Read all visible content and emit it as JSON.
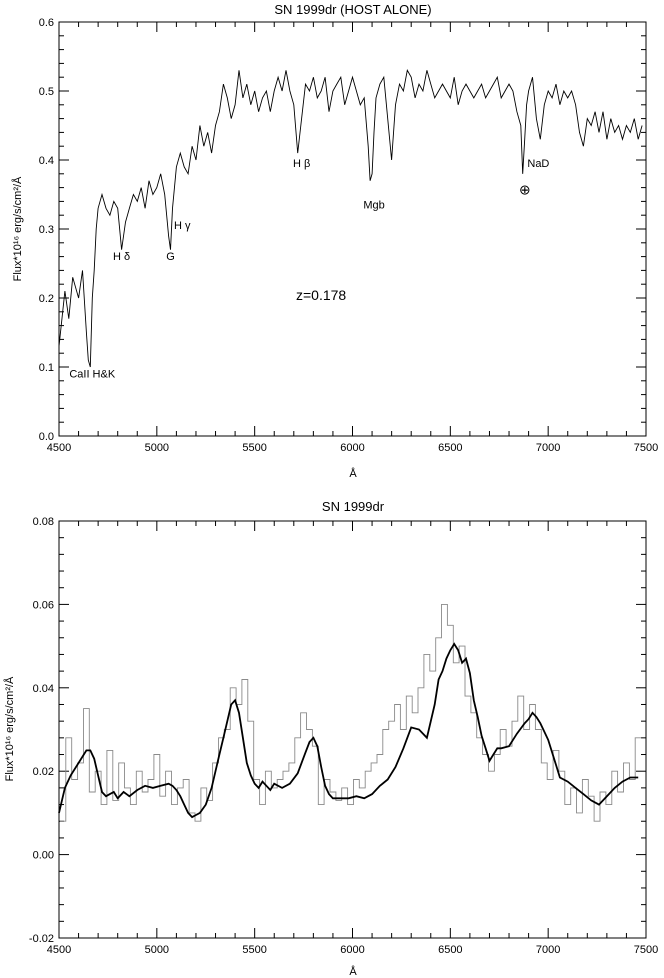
{
  "chart_data": [
    {
      "type": "line",
      "title": "SN 1999dr (HOST ALONE)",
      "xlabel": "Å",
      "ylabel": "Flux*10¹⁶ erg/s/cm²/Å",
      "xlim": [
        4500,
        7500
      ],
      "ylim": [
        0.0,
        0.6
      ],
      "x_ticks": [
        "4500",
        "5000",
        "5500",
        "6000",
        "6500",
        "7000",
        "7500"
      ],
      "y_ticks": [
        "0.0",
        "0.1",
        "0.2",
        "0.3",
        "0.4",
        "0.5",
        "0.6"
      ],
      "grid": false,
      "annotation_text": "z=0.178",
      "annotations": [
        {
          "text": "CaII H&K",
          "x": 4670,
          "y": 0.085
        },
        {
          "text": "H δ",
          "x": 4820,
          "y": 0.255
        },
        {
          "text": "G",
          "x": 5070,
          "y": 0.255
        },
        {
          "text": "H γ",
          "x": 5130,
          "y": 0.3
        },
        {
          "text": "H β",
          "x": 5740,
          "y": 0.39
        },
        {
          "text": "Mgb",
          "x": 6110,
          "y": 0.33
        },
        {
          "text": "⊕",
          "x": 6880,
          "y": 0.35
        },
        {
          "text": "NaD",
          "x": 6950,
          "y": 0.39
        }
      ],
      "series": [
        {
          "x": [
            4500,
            4530,
            4550,
            4570,
            4600,
            4620,
            4640,
            4650,
            4660,
            4670,
            4680,
            4690,
            4700,
            4720,
            4740,
            4760,
            4780,
            4800,
            4820,
            4840,
            4860,
            4880,
            4900,
            4920,
            4940,
            4960,
            4980,
            5000,
            5020,
            5040,
            5060,
            5070,
            5080,
            5100,
            5120,
            5140,
            5160,
            5180,
            5200,
            5220,
            5240,
            5260,
            5280,
            5300,
            5320,
            5340,
            5360,
            5380,
            5400,
            5420,
            5440,
            5460,
            5480,
            5500,
            5520,
            5540,
            5560,
            5580,
            5600,
            5620,
            5640,
            5660,
            5680,
            5700,
            5720,
            5740,
            5760,
            5780,
            5800,
            5820,
            5840,
            5860,
            5880,
            5900,
            5920,
            5940,
            5960,
            5980,
            6000,
            6020,
            6040,
            6060,
            6080,
            6090,
            6100,
            6110,
            6120,
            6140,
            6160,
            6180,
            6200,
            6220,
            6240,
            6260,
            6280,
            6300,
            6320,
            6340,
            6360,
            6380,
            6400,
            6420,
            6440,
            6460,
            6480,
            6500,
            6520,
            6540,
            6560,
            6580,
            6600,
            6620,
            6640,
            6660,
            6680,
            6700,
            6720,
            6740,
            6760,
            6780,
            6800,
            6820,
            6840,
            6860,
            6870,
            6880,
            6890,
            6900,
            6920,
            6940,
            6960,
            6980,
            7000,
            7020,
            7040,
            7060,
            7080,
            7100,
            7120,
            7140,
            7160,
            7180,
            7200,
            7220,
            7240,
            7260,
            7280,
            7300,
            7320,
            7340,
            7360,
            7380,
            7400,
            7420,
            7440,
            7460,
            7480
          ],
          "values": [
            0.13,
            0.21,
            0.17,
            0.23,
            0.2,
            0.24,
            0.15,
            0.11,
            0.1,
            0.2,
            0.24,
            0.3,
            0.33,
            0.35,
            0.33,
            0.32,
            0.34,
            0.33,
            0.27,
            0.31,
            0.33,
            0.35,
            0.34,
            0.36,
            0.33,
            0.37,
            0.35,
            0.36,
            0.38,
            0.35,
            0.29,
            0.27,
            0.33,
            0.39,
            0.41,
            0.39,
            0.38,
            0.42,
            0.4,
            0.45,
            0.42,
            0.44,
            0.41,
            0.45,
            0.47,
            0.51,
            0.49,
            0.46,
            0.48,
            0.53,
            0.49,
            0.51,
            0.48,
            0.5,
            0.47,
            0.49,
            0.5,
            0.47,
            0.5,
            0.52,
            0.5,
            0.53,
            0.5,
            0.48,
            0.41,
            0.46,
            0.51,
            0.5,
            0.52,
            0.49,
            0.5,
            0.52,
            0.47,
            0.5,
            0.51,
            0.52,
            0.48,
            0.5,
            0.52,
            0.5,
            0.48,
            0.49,
            0.42,
            0.37,
            0.38,
            0.44,
            0.49,
            0.51,
            0.52,
            0.46,
            0.4,
            0.48,
            0.51,
            0.5,
            0.53,
            0.52,
            0.49,
            0.51,
            0.5,
            0.53,
            0.51,
            0.49,
            0.5,
            0.51,
            0.5,
            0.49,
            0.52,
            0.48,
            0.5,
            0.51,
            0.5,
            0.49,
            0.5,
            0.51,
            0.49,
            0.5,
            0.51,
            0.52,
            0.49,
            0.5,
            0.51,
            0.5,
            0.47,
            0.45,
            0.38,
            0.43,
            0.48,
            0.5,
            0.52,
            0.46,
            0.43,
            0.48,
            0.5,
            0.49,
            0.51,
            0.48,
            0.5,
            0.49,
            0.5,
            0.48,
            0.44,
            0.42,
            0.46,
            0.45,
            0.47,
            0.44,
            0.47,
            0.43,
            0.46,
            0.44,
            0.45,
            0.43,
            0.45,
            0.44,
            0.46,
            0.43,
            0.45
          ]
        }
      ]
    },
    {
      "type": "line",
      "title": "SN 1999dr",
      "xlabel": "Å",
      "ylabel": "Flux*10¹⁶ erg/s/cm²/Å",
      "xlim": [
        4500,
        7500
      ],
      "ylim": [
        -0.02,
        0.08
      ],
      "x_ticks": [
        "4500",
        "5000",
        "5500",
        "6000",
        "6500",
        "7000",
        "7500"
      ],
      "y_ticks": [
        "-0.02",
        "0.00",
        "0.02",
        "0.04",
        "0.06",
        "0.08"
      ],
      "grid": false,
      "series": [
        {
          "x": [
            4520,
            4550,
            4580,
            4610,
            4640,
            4670,
            4700,
            4730,
            4760,
            4790,
            4820,
            4850,
            4880,
            4910,
            4940,
            4970,
            5000,
            5030,
            5060,
            5090,
            5120,
            5150,
            5180,
            5210,
            5240,
            5270,
            5300,
            5330,
            5360,
            5390,
            5420,
            5450,
            5480,
            5510,
            5540,
            5570,
            5600,
            5630,
            5660,
            5690,
            5720,
            5750,
            5780,
            5810,
            5840,
            5870,
            5900,
            5930,
            5960,
            5990,
            6020,
            6050,
            6080,
            6110,
            6140,
            6170,
            6200,
            6230,
            6260,
            6290,
            6320,
            6350,
            6380,
            6410,
            6440,
            6470,
            6500,
            6530,
            6560,
            6590,
            6620,
            6650,
            6680,
            6710,
            6740,
            6770,
            6800,
            6830,
            6860,
            6890,
            6920,
            6950,
            6980,
            7010,
            7040,
            7070,
            7100,
            7130,
            7160,
            7190,
            7220,
            7250,
            7280,
            7310,
            7340,
            7370,
            7400,
            7430,
            7460
          ],
          "values": [
            0.008,
            0.028,
            0.018,
            0.022,
            0.035,
            0.015,
            0.02,
            0.012,
            0.025,
            0.013,
            0.022,
            0.016,
            0.012,
            0.02,
            0.015,
            0.018,
            0.024,
            0.014,
            0.02,
            0.012,
            0.016,
            0.018,
            0.01,
            0.008,
            0.016,
            0.013,
            0.022,
            0.028,
            0.03,
            0.04,
            0.036,
            0.042,
            0.032,
            0.018,
            0.012,
            0.02,
            0.016,
            0.018,
            0.02,
            0.022,
            0.028,
            0.034,
            0.03,
            0.026,
            0.012,
            0.018,
            0.015,
            0.013,
            0.016,
            0.012,
            0.018,
            0.016,
            0.02,
            0.022,
            0.024,
            0.03,
            0.032,
            0.036,
            0.03,
            0.038,
            0.034,
            0.04,
            0.048,
            0.044,
            0.052,
            0.06,
            0.055,
            0.046,
            0.05,
            0.038,
            0.034,
            0.028,
            0.024,
            0.02,
            0.024,
            0.03,
            0.026,
            0.032,
            0.038,
            0.03,
            0.036,
            0.03,
            0.022,
            0.018,
            0.025,
            0.02,
            0.012,
            0.016,
            0.01,
            0.018,
            0.014,
            0.008,
            0.015,
            0.012,
            0.02,
            0.015,
            0.022,
            0.018,
            0.028
          ]
        },
        {
          "x": [
            4500,
            4530,
            4560,
            4600,
            4640,
            4660,
            4680,
            4700,
            4720,
            4740,
            4760,
            4780,
            4800,
            4830,
            4860,
            4900,
            4940,
            4980,
            5020,
            5060,
            5080,
            5100,
            5120,
            5140,
            5160,
            5180,
            5200,
            5220,
            5250,
            5280,
            5300,
            5320,
            5340,
            5360,
            5380,
            5400,
            5420,
            5440,
            5460,
            5480,
            5500,
            5520,
            5540,
            5560,
            5580,
            5600,
            5640,
            5680,
            5720,
            5760,
            5780,
            5800,
            5820,
            5840,
            5860,
            5880,
            5900,
            5940,
            5980,
            6020,
            6060,
            6100,
            6140,
            6180,
            6220,
            6260,
            6300,
            6340,
            6380,
            6420,
            6440,
            6460,
            6480,
            6500,
            6520,
            6540,
            6560,
            6580,
            6600,
            6620,
            6640,
            6660,
            6680,
            6700,
            6720,
            6740,
            6760,
            6800,
            6840,
            6880,
            6900,
            6920,
            6940,
            6960,
            6980,
            7000,
            7020,
            7040,
            7060,
            7100,
            7140,
            7180,
            7220,
            7260,
            7300,
            7340,
            7380,
            7420,
            7460
          ],
          "values": [
            0.01,
            0.016,
            0.019,
            0.022,
            0.025,
            0.025,
            0.023,
            0.019,
            0.015,
            0.014,
            0.0145,
            0.015,
            0.0135,
            0.015,
            0.014,
            0.0155,
            0.0165,
            0.016,
            0.0165,
            0.017,
            0.0165,
            0.0155,
            0.014,
            0.012,
            0.01,
            0.009,
            0.0095,
            0.01,
            0.012,
            0.016,
            0.02,
            0.024,
            0.028,
            0.032,
            0.036,
            0.037,
            0.034,
            0.028,
            0.022,
            0.019,
            0.017,
            0.016,
            0.0175,
            0.0165,
            0.0155,
            0.017,
            0.016,
            0.017,
            0.0195,
            0.0245,
            0.027,
            0.028,
            0.026,
            0.021,
            0.0165,
            0.0145,
            0.0135,
            0.0135,
            0.0135,
            0.014,
            0.0135,
            0.0145,
            0.0165,
            0.018,
            0.021,
            0.0255,
            0.0305,
            0.03,
            0.028,
            0.036,
            0.042,
            0.044,
            0.047,
            0.049,
            0.0505,
            0.049,
            0.046,
            0.047,
            0.0435,
            0.037,
            0.033,
            0.0285,
            0.0255,
            0.0225,
            0.024,
            0.0255,
            0.0255,
            0.026,
            0.029,
            0.0315,
            0.0325,
            0.034,
            0.033,
            0.0315,
            0.0295,
            0.0275,
            0.0245,
            0.0215,
            0.0185,
            0.0175,
            0.016,
            0.0145,
            0.013,
            0.012,
            0.014,
            0.016,
            0.0175,
            0.0185,
            0.0185
          ]
        }
      ]
    }
  ]
}
